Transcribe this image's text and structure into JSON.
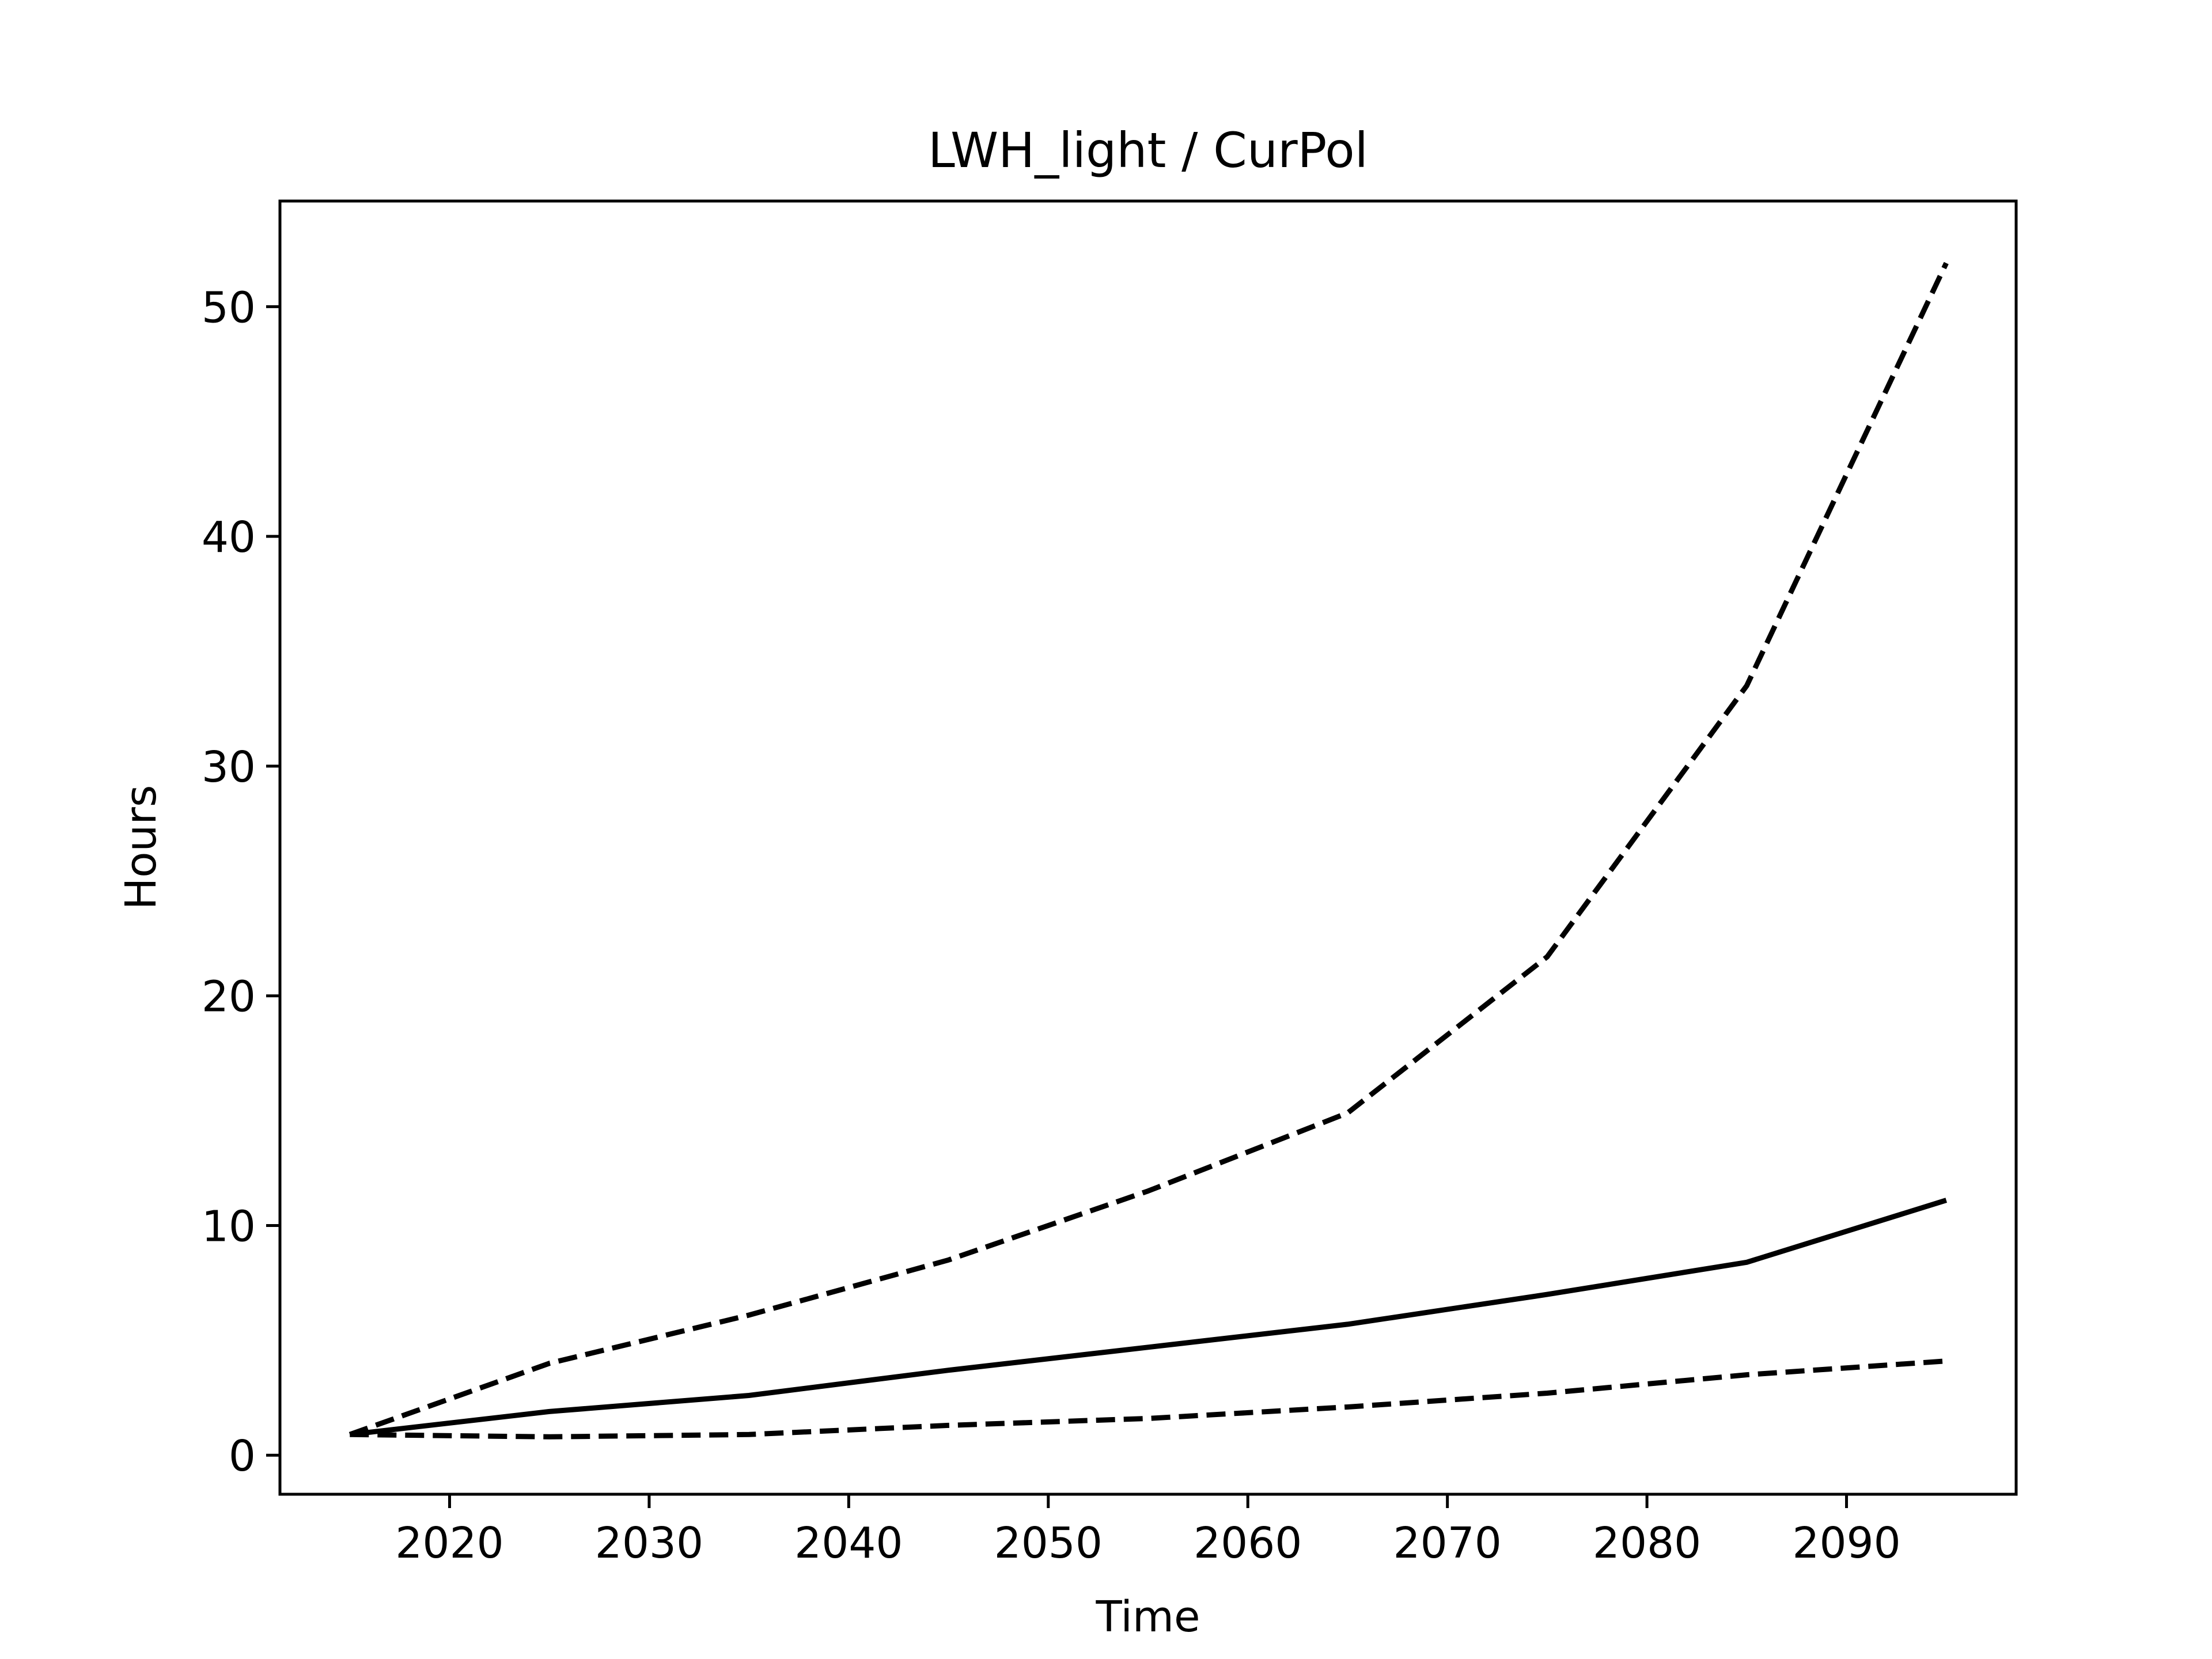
{
  "chart_data": {
    "type": "line",
    "title": "LWH_light / CurPol",
    "xlabel": "Time",
    "ylabel": "Hours",
    "xlim": [
      2011.5,
      2098.5
    ],
    "ylim": [
      -1.7,
      54.6
    ],
    "xticks": [
      2020,
      2030,
      2040,
      2050,
      2060,
      2070,
      2080,
      2090
    ],
    "yticks": [
      0,
      10,
      20,
      30,
      40,
      50
    ],
    "grid": false,
    "legend": "none",
    "colors": {
      "line": "#000000",
      "frame": "#000000",
      "background": "#ffffff"
    },
    "x": [
      2015,
      2025,
      2035,
      2045,
      2055,
      2065,
      2075,
      2085,
      2095
    ],
    "series": [
      {
        "style": "dashed",
        "values": [
          0.9,
          4.0,
          6.1,
          8.5,
          11.5,
          14.9,
          21.7,
          33.5,
          51.9
        ]
      },
      {
        "style": "solid",
        "values": [
          0.9,
          1.9,
          2.6,
          3.7,
          4.7,
          5.7,
          7.0,
          8.4,
          11.1
        ]
      },
      {
        "style": "dashed",
        "values": [
          0.9,
          0.8,
          0.9,
          1.3,
          1.6,
          2.1,
          2.7,
          3.5,
          4.1
        ]
      }
    ]
  }
}
